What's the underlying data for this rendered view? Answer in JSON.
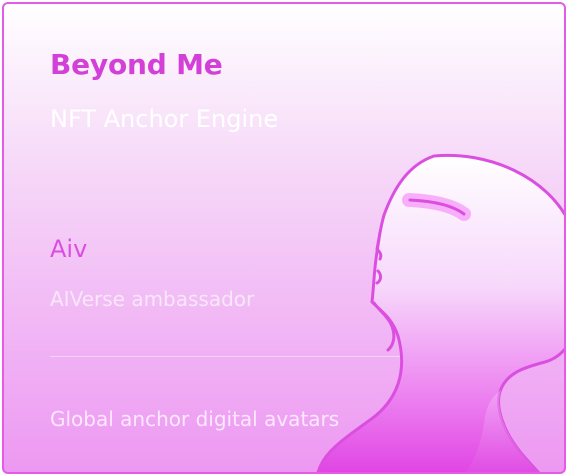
{
  "card": {
    "title": "Beyond Me",
    "subtitle": "NFT Anchor Engine",
    "name": "Aiv",
    "role": "AIVerse ambassador",
    "footer": "Global anchor digital avatars"
  },
  "illustration": {
    "icon": "head-profile-icon"
  },
  "colors": {
    "accent": "#d340d8",
    "border": "#e45be6",
    "gradient_top": "#ffffff",
    "gradient_bottom": "#ed98f2"
  }
}
